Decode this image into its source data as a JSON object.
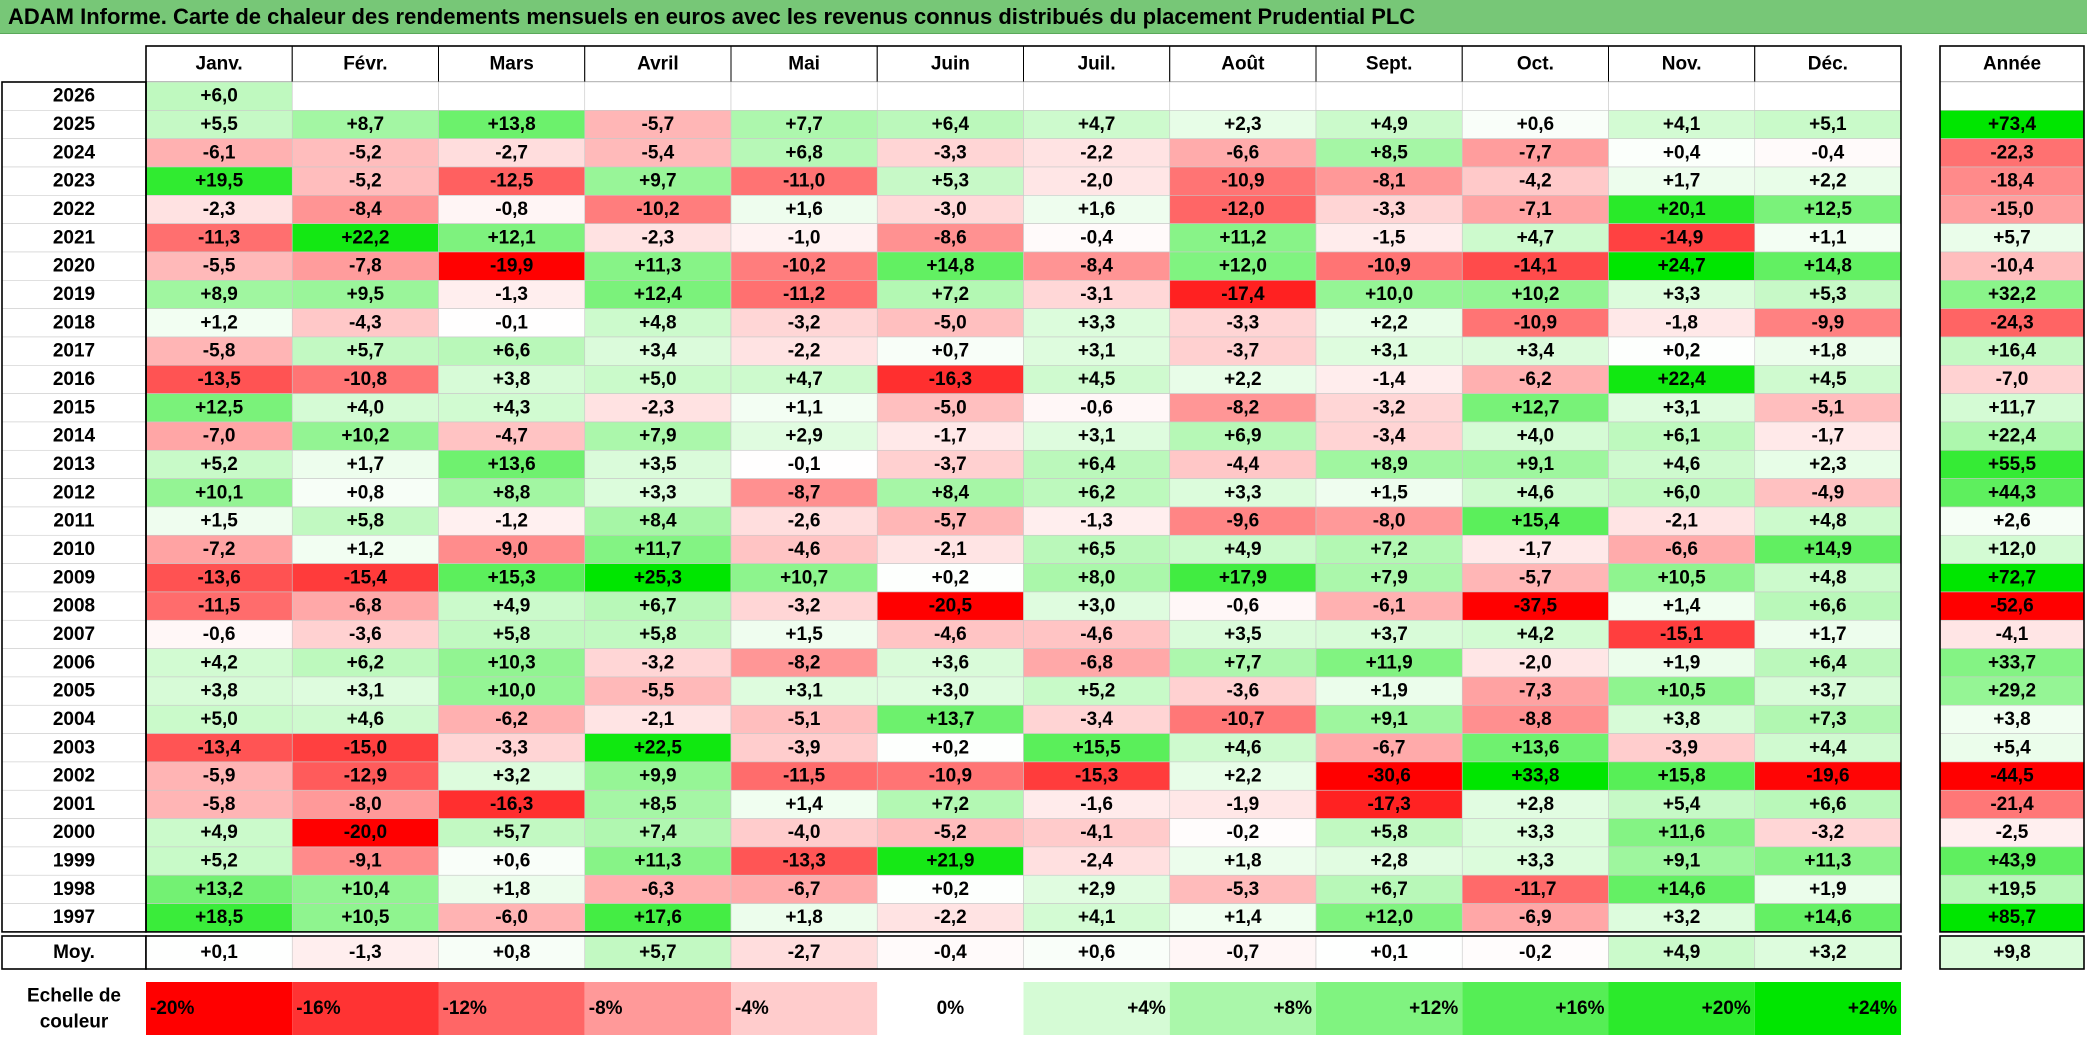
{
  "chart_data": {
    "type": "heatmap",
    "title": "ADAM Informe. Carte de chaleur des rendements mensuels en euros avec les revenus connus distribués du placement Prudential PLC",
    "months": [
      "Janv.",
      "Févr.",
      "Mars",
      "Avril",
      "Mai",
      "Juin",
      "Juil.",
      "Août",
      "Sept.",
      "Oct.",
      "Nov.",
      "Déc."
    ],
    "year_header": "Année",
    "rows": [
      {
        "year": "2026",
        "values": [
          "+6,0",
          null,
          null,
          null,
          null,
          null,
          null,
          null,
          null,
          null,
          null,
          null
        ],
        "annual": ""
      },
      {
        "year": "2025",
        "values": [
          "+5,5",
          "+8,7",
          "+13,8",
          "-5,7",
          "+7,7",
          "+6,4",
          "+4,7",
          "+2,3",
          "+4,9",
          "+0,6",
          "+4,1",
          "+5,1"
        ],
        "annual": "+73,4"
      },
      {
        "year": "2024",
        "values": [
          "-6,1",
          "-5,2",
          "-2,7",
          "-5,4",
          "+6,8",
          "-3,3",
          "-2,2",
          "-6,6",
          "+8,5",
          "-7,7",
          "+0,4",
          "-0,4"
        ],
        "annual": "-22,3"
      },
      {
        "year": "2023",
        "values": [
          "+19,5",
          "-5,2",
          "-12,5",
          "+9,7",
          "-11,0",
          "+5,3",
          "-2,0",
          "-10,9",
          "-8,1",
          "-4,2",
          "+1,7",
          "+2,2"
        ],
        "annual": "-18,4"
      },
      {
        "year": "2022",
        "values": [
          "-2,3",
          "-8,4",
          "-0,8",
          "-10,2",
          "+1,6",
          "-3,0",
          "+1,6",
          "-12,0",
          "-3,3",
          "-7,1",
          "+20,1",
          "+12,5"
        ],
        "annual": "-15,0"
      },
      {
        "year": "2021",
        "values": [
          "-11,3",
          "+22,2",
          "+12,1",
          "-2,3",
          "-1,0",
          "-8,6",
          "-0,4",
          "+11,2",
          "-1,5",
          "+4,7",
          "-14,9",
          "+1,1"
        ],
        "annual": "+5,7"
      },
      {
        "year": "2020",
        "values": [
          "-5,5",
          "-7,8",
          "-19,9",
          "+11,3",
          "-10,2",
          "+14,8",
          "-8,4",
          "+12,0",
          "-10,9",
          "-14,1",
          "+24,7",
          "+14,8"
        ],
        "annual": "-10,4"
      },
      {
        "year": "2019",
        "values": [
          "+8,9",
          "+9,5",
          "-1,3",
          "+12,4",
          "-11,2",
          "+7,2",
          "-3,1",
          "-17,4",
          "+10,0",
          "+10,2",
          "+3,3",
          "+5,3"
        ],
        "annual": "+32,2"
      },
      {
        "year": "2018",
        "values": [
          "+1,2",
          "-4,3",
          "-0,1",
          "+4,8",
          "-3,2",
          "-5,0",
          "+3,3",
          "-3,3",
          "+2,2",
          "-10,9",
          "-1,8",
          "-9,9"
        ],
        "annual": "-24,3"
      },
      {
        "year": "2017",
        "values": [
          "-5,8",
          "+5,7",
          "+6,6",
          "+3,4",
          "-2,2",
          "+0,7",
          "+3,1",
          "-3,7",
          "+3,1",
          "+3,4",
          "+0,2",
          "+1,8"
        ],
        "annual": "+16,4"
      },
      {
        "year": "2016",
        "values": [
          "-13,5",
          "-10,8",
          "+3,8",
          "+5,0",
          "+4,7",
          "-16,3",
          "+4,5",
          "+2,2",
          "-1,4",
          "-6,2",
          "+22,4",
          "+4,5"
        ],
        "annual": "-7,0"
      },
      {
        "year": "2015",
        "values": [
          "+12,5",
          "+4,0",
          "+4,3",
          "-2,3",
          "+1,1",
          "-5,0",
          "-0,6",
          "-8,2",
          "-3,2",
          "+12,7",
          "+3,1",
          "-5,1"
        ],
        "annual": "+11,7"
      },
      {
        "year": "2014",
        "values": [
          "-7,0",
          "+10,2",
          "-4,7",
          "+7,9",
          "+2,9",
          "-1,7",
          "+3,1",
          "+6,9",
          "-3,4",
          "+4,0",
          "+6,1",
          "-1,7"
        ],
        "annual": "+22,4"
      },
      {
        "year": "2013",
        "values": [
          "+5,2",
          "+1,7",
          "+13,6",
          "+3,5",
          "-0,1",
          "-3,7",
          "+6,4",
          "-4,4",
          "+8,9",
          "+9,1",
          "+4,6",
          "+2,3"
        ],
        "annual": "+55,5"
      },
      {
        "year": "2012",
        "values": [
          "+10,1",
          "+0,8",
          "+8,8",
          "+3,3",
          "-8,7",
          "+8,4",
          "+6,2",
          "+3,3",
          "+1,5",
          "+4,6",
          "+6,0",
          "-4,9"
        ],
        "annual": "+44,3"
      },
      {
        "year": "2011",
        "values": [
          "+1,5",
          "+5,8",
          "-1,2",
          "+8,4",
          "-2,6",
          "-5,7",
          "-1,3",
          "-9,6",
          "-8,0",
          "+15,4",
          "-2,1",
          "+4,8"
        ],
        "annual": "+2,6"
      },
      {
        "year": "2010",
        "values": [
          "-7,2",
          "+1,2",
          "-9,0",
          "+11,7",
          "-4,6",
          "-2,1",
          "+6,5",
          "+4,9",
          "+7,2",
          "-1,7",
          "-6,6",
          "+14,9"
        ],
        "annual": "+12,0"
      },
      {
        "year": "2009",
        "values": [
          "-13,6",
          "-15,4",
          "+15,3",
          "+25,3",
          "+10,7",
          "+0,2",
          "+8,0",
          "+17,9",
          "+7,9",
          "-5,7",
          "+10,5",
          "+4,8"
        ],
        "annual": "+72,7"
      },
      {
        "year": "2008",
        "values": [
          "-11,5",
          "-6,8",
          "+4,9",
          "+6,7",
          "-3,2",
          "-20,5",
          "+3,0",
          "-0,6",
          "-6,1",
          "-37,5",
          "+1,4",
          "+6,6"
        ],
        "annual": "-52,6"
      },
      {
        "year": "2007",
        "values": [
          "-0,6",
          "-3,6",
          "+5,8",
          "+5,8",
          "+1,5",
          "-4,6",
          "-4,6",
          "+3,5",
          "+3,7",
          "+4,2",
          "-15,1",
          "+1,7"
        ],
        "annual": "-4,1"
      },
      {
        "year": "2006",
        "values": [
          "+4,2",
          "+6,2",
          "+10,3",
          "-3,2",
          "-8,2",
          "+3,6",
          "-6,8",
          "+7,7",
          "+11,9",
          "-2,0",
          "+1,9",
          "+6,4"
        ],
        "annual": "+33,7"
      },
      {
        "year": "2005",
        "values": [
          "+3,8",
          "+3,1",
          "+10,0",
          "-5,5",
          "+3,1",
          "+3,0",
          "+5,2",
          "-3,6",
          "+1,9",
          "-7,3",
          "+10,5",
          "+3,7"
        ],
        "annual": "+29,2"
      },
      {
        "year": "2004",
        "values": [
          "+5,0",
          "+4,6",
          "-6,2",
          "-2,1",
          "-5,1",
          "+13,7",
          "-3,4",
          "-10,7",
          "+9,1",
          "-8,8",
          "+3,8",
          "+7,3"
        ],
        "annual": "+3,8"
      },
      {
        "year": "2003",
        "values": [
          "-13,4",
          "-15,0",
          "-3,3",
          "+22,5",
          "-3,9",
          "+0,2",
          "+15,5",
          "+4,6",
          "-6,7",
          "+13,6",
          "-3,9",
          "+4,4"
        ],
        "annual": "+5,4"
      },
      {
        "year": "2002",
        "values": [
          "-5,9",
          "-12,9",
          "+3,2",
          "+9,9",
          "-11,5",
          "-10,9",
          "-15,3",
          "+2,2",
          "-30,6",
          "+33,8",
          "+15,8",
          "-19,6"
        ],
        "annual": "-44,5"
      },
      {
        "year": "2001",
        "values": [
          "-5,8",
          "-8,0",
          "-16,3",
          "+8,5",
          "+1,4",
          "+7,2",
          "-1,6",
          "-1,9",
          "-17,3",
          "+2,8",
          "+5,4",
          "+6,6"
        ],
        "annual": "-21,4"
      },
      {
        "year": "2000",
        "values": [
          "+4,9",
          "-20,0",
          "+5,7",
          "+7,4",
          "-4,0",
          "-5,2",
          "-4,1",
          "-0,2",
          "+5,8",
          "+3,3",
          "+11,6",
          "-3,2"
        ],
        "annual": "-2,5"
      },
      {
        "year": "1999",
        "values": [
          "+5,2",
          "-9,1",
          "+0,6",
          "+11,3",
          "-13,3",
          "+21,9",
          "-2,4",
          "+1,8",
          "+2,8",
          "+3,3",
          "+9,1",
          "+11,3"
        ],
        "annual": "+43,9"
      },
      {
        "year": "1998",
        "values": [
          "+13,2",
          "+10,4",
          "+1,8",
          "-6,3",
          "-6,7",
          "+0,2",
          "+2,9",
          "-5,3",
          "+6,7",
          "-11,7",
          "+14,6",
          "+1,9"
        ],
        "annual": "+19,5"
      },
      {
        "year": "1997",
        "values": [
          "+18,5",
          "+10,5",
          "-6,0",
          "+17,6",
          "+1,8",
          "-2,2",
          "+4,1",
          "+1,4",
          "+12,0",
          "-6,9",
          "+3,2",
          "+14,6"
        ],
        "annual": "+85,7"
      }
    ],
    "average": {
      "label": "Moy.",
      "values": [
        "+0,1",
        "-1,3",
        "+0,8",
        "+5,7",
        "-2,7",
        "-0,4",
        "+0,6",
        "-0,7",
        "+0,1",
        "-0,2",
        "+4,9",
        "+3,2"
      ],
      "annual": "+9,8"
    },
    "scale": {
      "label_line1": "Echelle de",
      "label_line2": "couleur",
      "stops": [
        "-20%",
        "-16%",
        "-12%",
        "-8%",
        "-4%",
        "0%",
        "+4%",
        "+8%",
        "+12%",
        "+16%",
        "+20%",
        "+24%"
      ],
      "values": [
        -20,
        -16,
        -12,
        -8,
        -4,
        0,
        4,
        8,
        12,
        16,
        20,
        24
      ]
    },
    "colors": {
      "title_bg": "#77c777",
      "negative": "#ff0000",
      "neutral": "#ffffff",
      "positive": "#00e600"
    }
  }
}
